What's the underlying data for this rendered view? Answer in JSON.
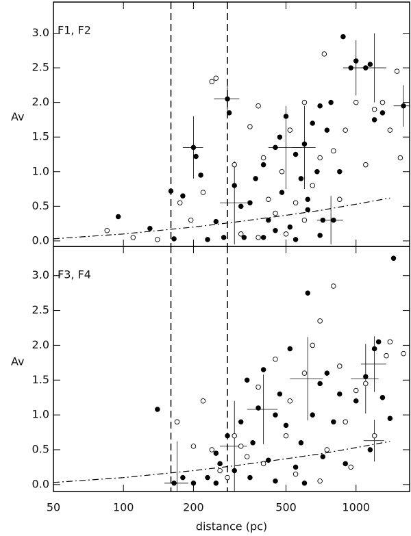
{
  "chart_data": [
    {
      "type": "scatter",
      "label": "F1, F2",
      "ylabel": "Av",
      "xscale": "log",
      "xlim": [
        50,
        1700
      ],
      "xticks": [
        50,
        100,
        200,
        500,
        1000
      ],
      "ylim": [
        -0.08,
        3.45
      ],
      "yticks": [
        {
          "value": 0,
          "label": "0.0"
        },
        0.5,
        {
          "value": 1,
          "label": "1.0"
        },
        1.5,
        {
          "value": 2,
          "label": "2.0"
        },
        2.5,
        {
          "value": 3,
          "label": "3.0"
        }
      ],
      "vlines": [
        160,
        280
      ],
      "series": [
        {
          "marker": "filled",
          "color": "#000000",
          "x": [
            95,
            130,
            160,
            165,
            180,
            200,
            205,
            215,
            230,
            250,
            270,
            280,
            285,
            300,
            320,
            330,
            350,
            370,
            400,
            420,
            450,
            470,
            480,
            500,
            520,
            550,
            580,
            600,
            620,
            650,
            680,
            700,
            720,
            750,
            780,
            800,
            850,
            880,
            950,
            1000,
            1100,
            1150,
            1200,
            1300,
            1600,
            400,
            550,
            700,
            620,
            450
          ],
          "values": [
            0.35,
            0.18,
            0.72,
            0.03,
            0.65,
            1.35,
            1.22,
            0.95,
            0.02,
            0.28,
            0.05,
            2.05,
            1.85,
            0.8,
            0.5,
            0.05,
            0.55,
            0.9,
            1.1,
            0.3,
            1.35,
            1.5,
            0.7,
            1.8,
            0.2,
            1.25,
            0.9,
            1.4,
            0.45,
            1.7,
            1.0,
            1.95,
            0.3,
            1.6,
            2.0,
            0.3,
            1.0,
            2.95,
            2.5,
            2.6,
            2.5,
            2.55,
            1.75,
            1.85,
            1.95,
            0.05,
            0.02,
            0.08,
            0.6,
            0.15
          ]
        },
        {
          "marker": "open",
          "color": "#000000",
          "x": [
            85,
            110,
            140,
            175,
            195,
            220,
            240,
            250,
            300,
            320,
            350,
            380,
            400,
            420,
            450,
            480,
            500,
            520,
            550,
            600,
            650,
            700,
            730,
            800,
            850,
            900,
            1000,
            1100,
            1200,
            1400,
            1500,
            1550,
            1300,
            600,
            380
          ],
          "values": [
            0.15,
            0.05,
            0.02,
            0.55,
            0.3,
            0.7,
            2.3,
            2.35,
            1.1,
            0.1,
            1.65,
            1.95,
            1.2,
            0.6,
            0.4,
            1.0,
            0.1,
            1.6,
            0.55,
            2.0,
            0.8,
            1.2,
            2.7,
            1.3,
            0.6,
            1.6,
            2.0,
            1.1,
            1.9,
            1.6,
            2.45,
            1.2,
            2.0,
            0.3,
            0.05
          ]
        }
      ],
      "errorbars": {
        "x": [
          200,
          280,
          300,
          500,
          600,
          1000,
          1200,
          1600,
          780
        ],
        "y": [
          1.35,
          2.05,
          0.55,
          1.35,
          1.35,
          2.5,
          2.5,
          1.95,
          0.3
        ],
        "xerr": [
          20,
          35,
          40,
          80,
          70,
          120,
          150,
          150,
          100
        ],
        "yerr": [
          0.45,
          0.28,
          0.6,
          0.6,
          0.6,
          0.4,
          0.5,
          0.3,
          0.35
        ]
      },
      "curve": {
        "x": [
          50,
          100,
          200,
          300,
          500,
          700,
          1000,
          1400
        ],
        "y": [
          0.03,
          0.1,
          0.2,
          0.27,
          0.37,
          0.44,
          0.53,
          0.62
        ]
      }
    },
    {
      "type": "scatter",
      "label": "F3, F4",
      "ylabel": "Av",
      "xlabel": "distance (pc)",
      "xscale": "log",
      "xlim": [
        50,
        1700
      ],
      "xticks": [
        50,
        100,
        200,
        500,
        1000
      ],
      "ylim": [
        -0.1,
        3.42
      ],
      "yticks": [
        {
          "value": 0,
          "label": "0.0"
        },
        0.5,
        {
          "value": 1,
          "label": "1.0"
        },
        1.5,
        {
          "value": 2,
          "label": "2.0"
        },
        2.5,
        {
          "value": 3,
          "label": "3.0"
        }
      ],
      "vlines": [
        160,
        280
      ],
      "series": [
        {
          "marker": "filled",
          "color": "#000000",
          "x": [
            140,
            165,
            180,
            200,
            230,
            250,
            260,
            280,
            300,
            320,
            340,
            360,
            380,
            400,
            420,
            450,
            470,
            500,
            520,
            550,
            580,
            620,
            650,
            700,
            720,
            750,
            800,
            850,
            900,
            1000,
            1100,
            1150,
            1200,
            1250,
            1300,
            1400,
            1450,
            250,
            450,
            600,
            350
          ],
          "values": [
            1.08,
            0.02,
            0.1,
            0.02,
            0.1,
            0.45,
            0.3,
            0.7,
            0.2,
            0.9,
            1.5,
            0.6,
            1.1,
            1.65,
            0.35,
            1.0,
            1.3,
            0.85,
            1.95,
            0.25,
            0.6,
            2.75,
            1.0,
            1.45,
            0.4,
            1.6,
            0.9,
            1.3,
            0.3,
            1.2,
            1.55,
            0.5,
            1.95,
            2.05,
            1.25,
            0.95,
            3.25,
            0.02,
            0.05,
            0.02,
            0.1
          ]
        },
        {
          "marker": "open",
          "color": "#000000",
          "x": [
            170,
            200,
            220,
            240,
            260,
            280,
            300,
            320,
            340,
            380,
            400,
            450,
            500,
            520,
            550,
            600,
            650,
            700,
            750,
            800,
            850,
            900,
            950,
            1000,
            1100,
            1200,
            1400,
            1600,
            1350,
            700
          ],
          "values": [
            0.9,
            0.55,
            1.2,
            0.5,
            0.2,
            0.1,
            0.7,
            0.55,
            0.4,
            1.4,
            0.3,
            1.8,
            0.7,
            1.2,
            0.15,
            1.6,
            2.0,
            2.35,
            0.5,
            2.85,
            1.7,
            0.9,
            0.25,
            1.35,
            1.45,
            0.7,
            2.05,
            1.88,
            1.85,
            0.05
          ]
        }
      ],
      "errorbars": {
        "x": [
          170,
          300,
          400,
          620,
          1100,
          1200,
          1200
        ],
        "y": [
          0.02,
          0.55,
          1.08,
          1.52,
          1.52,
          1.73,
          0.63
        ],
        "xerr": [
          20,
          40,
          60,
          100,
          150,
          150,
          120
        ],
        "yerr": [
          0.6,
          0.65,
          0.5,
          0.6,
          0.5,
          0.4,
          0.3
        ]
      },
      "curve": {
        "x": [
          50,
          100,
          200,
          300,
          500,
          700,
          1000,
          1400
        ],
        "y": [
          0.03,
          0.1,
          0.2,
          0.27,
          0.37,
          0.44,
          0.53,
          0.62
        ]
      }
    }
  ]
}
